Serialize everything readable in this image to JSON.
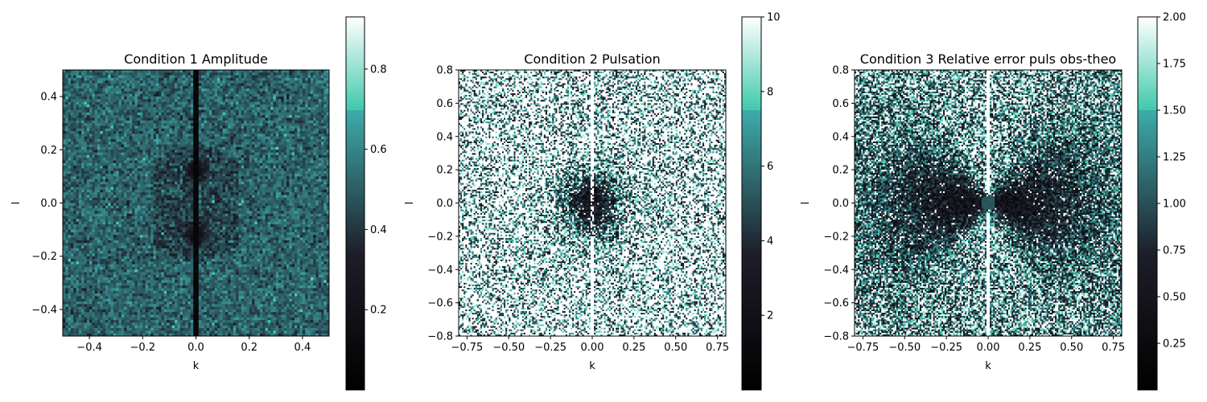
{
  "chart_data": [
    {
      "type": "heatmap",
      "title": "Condition 1 Amplitude",
      "xlabel": "k",
      "ylabel": "l",
      "xlim": [
        -0.5,
        0.5
      ],
      "ylim": [
        -0.5,
        0.5
      ],
      "xticks": [
        -0.4,
        -0.2,
        0.0,
        0.2,
        0.4
      ],
      "xtick_labels": [
        "−0.4",
        "−0.2",
        "0.0",
        "0.2",
        "0.4"
      ],
      "yticks": [
        -0.4,
        -0.2,
        0.0,
        0.2,
        0.4
      ],
      "ytick_labels": [
        "−0.4",
        "−0.2",
        "0.0",
        "0.2",
        "0.4"
      ],
      "colorbar": {
        "range": [
          0.0,
          0.93
        ],
        "ticks": [
          0.2,
          0.4,
          0.6,
          0.8
        ],
        "tick_labels": [
          "0.2",
          "0.4",
          "0.6",
          "0.8"
        ]
      },
      "colormap": "bone",
      "grid_resolution": 100,
      "features": "noisy field ~0.3-0.7; dark vertical line at k=0; dark spots near (0,±0.12)"
    },
    {
      "type": "heatmap",
      "title": "Condition 2 Pulsation",
      "xlabel": "k",
      "ylabel": "l",
      "xlim": [
        -0.8,
        0.8
      ],
      "ylim": [
        -0.8,
        0.8
      ],
      "xticks": [
        -0.75,
        -0.5,
        -0.25,
        0.0,
        0.25,
        0.5,
        0.75
      ],
      "xtick_labels": [
        "−0.75",
        "−0.50",
        "−0.25",
        "0.00",
        "0.25",
        "0.50",
        "0.75"
      ],
      "yticks": [
        -0.8,
        -0.6,
        -0.4,
        -0.2,
        0.0,
        0.2,
        0.4,
        0.6,
        0.8
      ],
      "ytick_labels": [
        "−0.8",
        "−0.6",
        "−0.4",
        "−0.2",
        "0.0",
        "0.2",
        "0.4",
        "0.6",
        "0.8"
      ],
      "colorbar": {
        "range": [
          0.0,
          10.0
        ],
        "ticks": [
          2,
          4,
          6,
          8,
          10
        ],
        "tick_labels": [
          "2",
          "4",
          "6",
          "8",
          "10"
        ]
      },
      "colormap": "bone",
      "grid_resolution": 160,
      "features": "saturated noisy field; dark lobes either side of k=0 near origin; white vertical line at k=0"
    },
    {
      "type": "heatmap",
      "title": "Condition 3 Relative error puls obs-theo",
      "xlabel": "k",
      "ylabel": "l",
      "xlim": [
        -0.8,
        0.8
      ],
      "ylim": [
        -0.8,
        0.8
      ],
      "xticks": [
        -0.75,
        -0.5,
        -0.25,
        0.0,
        0.25,
        0.5,
        0.75
      ],
      "xtick_labels": [
        "−0.75",
        "−0.50",
        "−0.25",
        "0.00",
        "0.25",
        "0.50",
        "0.75"
      ],
      "yticks": [
        -0.8,
        -0.6,
        -0.4,
        -0.2,
        0.0,
        0.2,
        0.4,
        0.6,
        0.8
      ],
      "ytick_labels": [
        "−0.8",
        "−0.6",
        "−0.4",
        "−0.2",
        "0.0",
        "0.2",
        "0.4",
        "0.6",
        "0.8"
      ],
      "colorbar": {
        "range": [
          0.0,
          2.0
        ],
        "ticks": [
          0.25,
          0.5,
          0.75,
          1.0,
          1.25,
          1.5,
          1.75,
          2.0
        ],
        "tick_labels": [
          "0.25",
          "0.50",
          "0.75",
          "1.00",
          "1.25",
          "1.50",
          "1.75",
          "2.00"
        ]
      },
      "colormap": "bone",
      "grid_resolution": 160,
      "features": "bow-tie dark region along k; grey disk ~1.0 at origin; white vertical line at k=0"
    }
  ]
}
